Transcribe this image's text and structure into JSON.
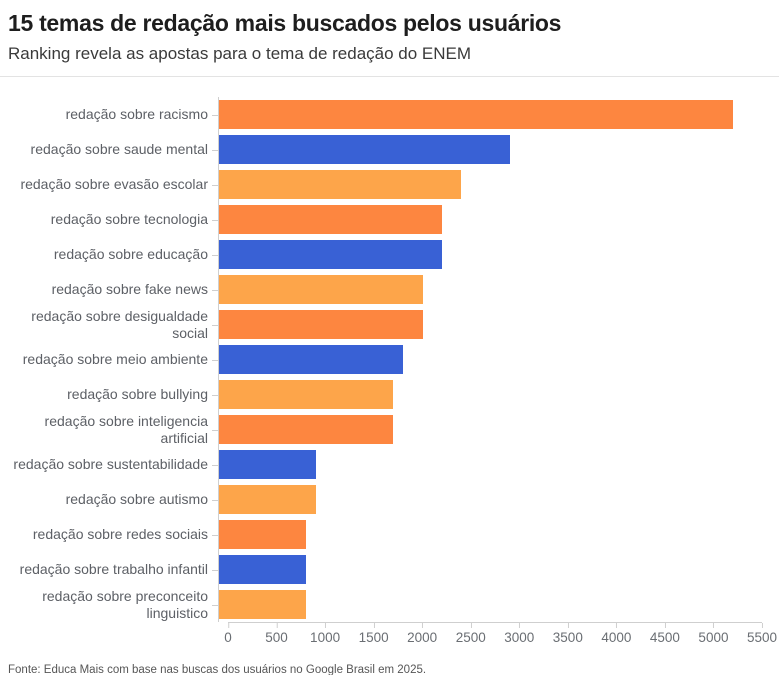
{
  "header": {
    "title": "15 temas de redação mais buscados pelos usuários",
    "subtitle": "Ranking revela as apostas para o tema de redação do ENEM"
  },
  "footer": {
    "source": "Fonte: Educa Mais com base nas buscas dos usuários no Google Brasil em 2025."
  },
  "colors": {
    "dark_orange": "#fd8640",
    "blue": "#3961d5",
    "light_orange": "#fda54a",
    "axis_line": "#cfcfcf",
    "category_text": "#5d6066",
    "tick_text": "#6a6e73",
    "title_text": "#1e1e1e",
    "subtitle_text": "#3a3a3a"
  },
  "chart_data": {
    "type": "bar",
    "orientation": "horizontal",
    "title": "15 temas de redação mais buscados pelos usuários",
    "subtitle": "Ranking revela as apostas para o tema de redação do ENEM",
    "source": "Fonte: Educa Mais com base nas buscas dos usuários no Google Brasil em 2025.",
    "categories": [
      "redação sobre racismo",
      "redação sobre saude mental",
      "redação sobre evasão escolar",
      "redação sobre tecnologia",
      "redação sobre educação",
      "redação sobre fake news",
      "redação sobre desigualdade social",
      "redação sobre meio ambiente",
      "redação sobre bullying",
      "redação sobre inteligencia artificial",
      "redação sobre sustentabilidade",
      "redação sobre autismo",
      "redação sobre redes sociais",
      "redação sobre trabalho infantil",
      "redação sobre preconceito linguistico"
    ],
    "values": [
      5300,
      3000,
      2500,
      2300,
      2300,
      2100,
      2100,
      1900,
      1800,
      1800,
      1000,
      1000,
      900,
      900,
      900
    ],
    "bar_colors": [
      "#fd8640",
      "#3961d5",
      "#fda54a",
      "#fd8640",
      "#3961d5",
      "#fda54a",
      "#fd8640",
      "#3961d5",
      "#fda54a",
      "#fd8640",
      "#3961d5",
      "#fda54a",
      "#fd8640",
      "#3961d5",
      "#fda54a"
    ],
    "xlabel": "",
    "ylabel": "",
    "xlim": [
      0,
      5500
    ],
    "x_ticks": [
      0,
      500,
      1000,
      1500,
      2000,
      2500,
      3000,
      3500,
      4000,
      4500,
      5000,
      5500
    ],
    "grid": false,
    "legend": false
  }
}
